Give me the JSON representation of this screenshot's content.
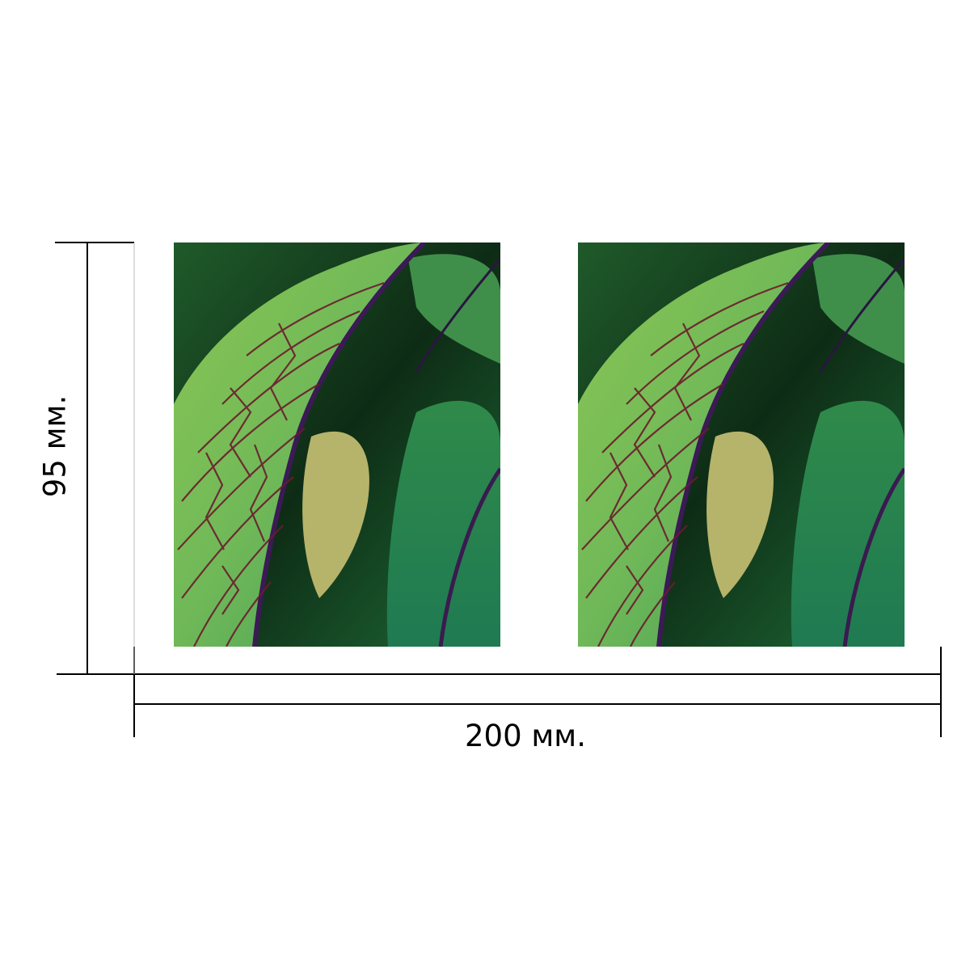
{
  "dimensions": {
    "width_label": "200 мм.",
    "height_label": "95 мм."
  },
  "panels": [
    {
      "subject": "leaf-photo",
      "description_colors": [
        "#2f7d3b",
        "#7dbf4e",
        "#5a1730",
        "#0d2a14"
      ]
    },
    {
      "subject": "leaf-photo",
      "description_colors": [
        "#2f7d3b",
        "#7dbf4e",
        "#5a1730",
        "#0d2a14"
      ]
    }
  ],
  "colors": {
    "line": "#000000",
    "background": "#ffffff"
  }
}
